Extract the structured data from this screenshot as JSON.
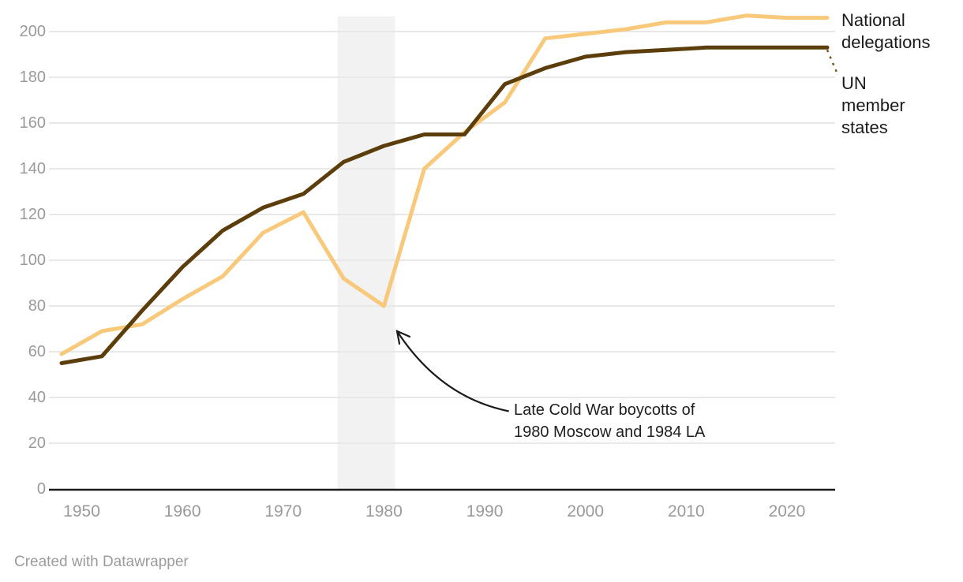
{
  "chart_data": {
    "type": "line",
    "title": "",
    "xlabel": "",
    "ylabel": "",
    "x": [
      1948,
      1952,
      1956,
      1960,
      1964,
      1968,
      1972,
      1976,
      1980,
      1984,
      1988,
      1992,
      1996,
      2000,
      2004,
      2008,
      2012,
      2016,
      2020,
      2024
    ],
    "series": [
      {
        "name": "National delegations",
        "color": "#F8C87B",
        "values": [
          59,
          69,
          72,
          83,
          93,
          112,
          121,
          92,
          80,
          140,
          156,
          169,
          197,
          199,
          201,
          204,
          204,
          207,
          206,
          206
        ]
      },
      {
        "name": "UN member states",
        "color": "#5C3E0C",
        "values": [
          55,
          58,
          78,
          97,
          113,
          123,
          129,
          143,
          150,
          155,
          155,
          177,
          184,
          189,
          191,
          192,
          193,
          193,
          193,
          193
        ]
      }
    ],
    "ylim": [
      0,
      200
    ],
    "ytick_step": 20,
    "xticks": [
      1950,
      1960,
      1970,
      1980,
      1990,
      2000,
      2010,
      2020
    ],
    "grid": "horizontal",
    "gridline_color": "#e8e8e8",
    "axis_color": "#1a1a1a",
    "tick_label_color": "#9a9a9a",
    "legend_position": "right",
    "shaded_region": {
      "from_year": 1975.4,
      "to_year": 1981.1,
      "color": "#f2f2f2"
    },
    "annotation": {
      "line1": "Late Cold War boycotts of",
      "line2": "1980 Moscow and 1984 LA",
      "arrow_from": {
        "year": 1992.4,
        "value": 34
      },
      "arrow_ctrl": {
        "year": 1985.6,
        "value": 40
      },
      "arrow_to": {
        "year": 1981.3,
        "value": 69
      },
      "arrow_color": "#1a1a1a"
    },
    "legend_connector_color": "#7a5a20"
  },
  "legend": {
    "series1": "National delegations",
    "series2": "UN member states"
  },
  "footer": {
    "credit": "Created with Datawrapper"
  }
}
